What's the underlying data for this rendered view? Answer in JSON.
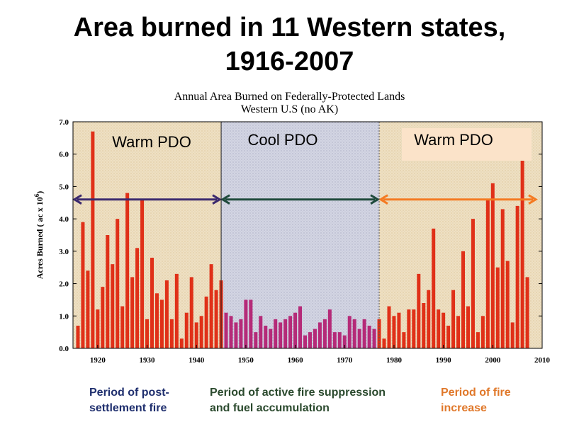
{
  "page": {
    "title_line1": "Area burned in 11 Western states,",
    "title_line2": "1916-2007"
  },
  "legend": {
    "post_settlement": "Period of post-settlement fire",
    "suppression_line1": "Period of active fire suppression",
    "suppression_line2": "and fuel accumulation",
    "increase_line1": "Period of fire",
    "increase_line2": "increase"
  },
  "colors": {
    "warm_fill": "#efe0c2",
    "cool_fill": "#d3d5e3",
    "bar_red": "#e03018",
    "bar_magenta": "#b52a78",
    "arrow_purple": "#3c2a6e",
    "arrow_green": "#1f4a3c",
    "arrow_orange": "#f47a22",
    "post_settlement_text": "#1f2f6e",
    "suppression_text": "#2b4a2e",
    "increase_text": "#e0782a",
    "warm_box": "#fbe3c9"
  },
  "chart_data": {
    "type": "bar",
    "title": "Annual Area Burned on Federally-Protected Lands",
    "subtitle": "Western U.S (no AK)",
    "xlabel": "",
    "ylabel": "Acres Burned ( ac x 10^6)",
    "ylabel_main": "Acres Burned ( ac x 10",
    "ylabel_exp": "6",
    "ylabel_close": ")",
    "xlim": [
      1915,
      2010
    ],
    "ylim": [
      0,
      7.0
    ],
    "xticks": [
      "1920",
      "1930",
      "1940",
      "1950",
      "1960",
      "1970",
      "1980",
      "1990",
      "2000",
      "2010"
    ],
    "yticks": [
      "0.0",
      "1.0",
      "2.0",
      "3.0",
      "4.0",
      "5.0",
      "6.0",
      "7.0"
    ],
    "x": [
      1916,
      1917,
      1918,
      1919,
      1920,
      1921,
      1922,
      1923,
      1924,
      1925,
      1926,
      1927,
      1928,
      1929,
      1930,
      1931,
      1932,
      1933,
      1934,
      1935,
      1936,
      1937,
      1938,
      1939,
      1940,
      1941,
      1942,
      1943,
      1944,
      1945,
      1946,
      1947,
      1948,
      1949,
      1950,
      1951,
      1952,
      1953,
      1954,
      1955,
      1956,
      1957,
      1958,
      1959,
      1960,
      1961,
      1962,
      1963,
      1964,
      1965,
      1966,
      1967,
      1968,
      1969,
      1970,
      1971,
      1972,
      1973,
      1974,
      1975,
      1976,
      1977,
      1978,
      1979,
      1980,
      1981,
      1982,
      1983,
      1984,
      1985,
      1986,
      1987,
      1988,
      1989,
      1990,
      1991,
      1992,
      1993,
      1994,
      1995,
      1996,
      1997,
      1998,
      1999,
      2000,
      2001,
      2002,
      2003,
      2004,
      2005,
      2006,
      2007
    ],
    "values": [
      0.7,
      3.9,
      2.4,
      6.7,
      1.2,
      1.9,
      3.5,
      2.6,
      4.0,
      1.3,
      4.8,
      2.2,
      3.1,
      4.6,
      0.9,
      2.8,
      1.7,
      1.5,
      2.1,
      0.9,
      2.3,
      0.3,
      1.1,
      2.2,
      0.8,
      1.0,
      1.6,
      2.6,
      1.8,
      2.1,
      1.1,
      1.0,
      0.8,
      0.9,
      1.5,
      1.5,
      0.5,
      1.0,
      0.7,
      0.6,
      0.9,
      0.8,
      0.9,
      1.0,
      1.1,
      1.3,
      0.4,
      0.5,
      0.6,
      0.8,
      0.9,
      1.2,
      0.5,
      0.5,
      0.4,
      1.0,
      0.9,
      0.6,
      0.9,
      0.7,
      0.6,
      0.9,
      0.3,
      1.3,
      1.0,
      1.1,
      0.5,
      1.2,
      1.2,
      2.3,
      1.4,
      1.8,
      3.7,
      1.2,
      1.1,
      0.7,
      1.8,
      1.0,
      3.0,
      1.3,
      4.0,
      0.5,
      1.0,
      4.6,
      5.1,
      2.5,
      4.3,
      2.7,
      0.8,
      4.4,
      5.8,
      2.2
    ],
    "periods": [
      {
        "name": "Warm PDO",
        "start": 1915,
        "end": 1945
      },
      {
        "name": "Cool PDO",
        "start": 1945,
        "end": 1977
      },
      {
        "name": "Warm PDO",
        "start": 1977,
        "end": 2010
      }
    ],
    "arrows": [
      {
        "from": 1915,
        "to": 1945,
        "y": 4.6,
        "period": "post-settlement fire"
      },
      {
        "from": 1945,
        "to": 1977,
        "y": 4.6,
        "period": "active fire suppression"
      },
      {
        "from": 1977,
        "to": 2009,
        "y": 4.6,
        "period": "fire increase"
      }
    ]
  }
}
